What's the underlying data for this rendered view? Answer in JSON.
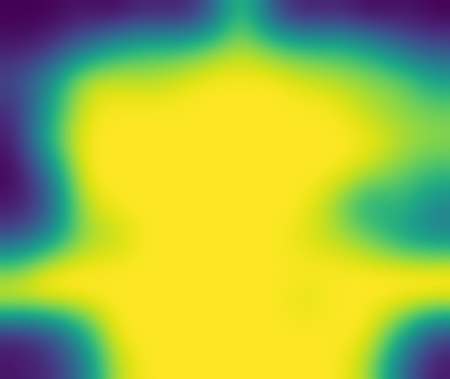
{
  "chart_data": {
    "type": "heatmap",
    "color": "viridis",
    "tick_labels": false,
    "cells": [
      [
        0.1,
        0.1,
        0.15,
        0.1,
        0.2,
        0.15,
        0.3,
        0.8,
        0.3,
        0.15,
        0.2,
        0.1,
        0.15,
        0.1
      ],
      [
        0.15,
        0.2,
        0.4,
        0.6,
        0.7,
        0.7,
        0.8,
        0.9,
        0.8,
        0.7,
        0.7,
        0.6,
        0.4,
        0.3
      ],
      [
        0.3,
        0.5,
        0.9,
        0.95,
        0.9,
        0.95,
        1,
        1,
        1,
        0.95,
        0.9,
        0.85,
        0.8,
        0.6
      ],
      [
        0.2,
        0.6,
        0.95,
        1,
        1,
        1,
        1,
        1,
        1,
        1,
        1,
        0.9,
        0.85,
        0.8
      ],
      [
        0.15,
        0.7,
        1,
        1,
        1,
        1,
        1,
        1,
        1,
        1,
        1,
        1,
        0.9,
        0.85
      ],
      [
        0.1,
        0.4,
        1,
        1,
        1,
        1,
        1,
        1,
        1,
        1,
        1,
        0.9,
        0.8,
        0.7
      ],
      [
        0.15,
        0.3,
        0.9,
        1,
        1,
        1,
        1,
        1,
        1,
        1,
        0.85,
        0.6,
        0.7,
        0.5
      ],
      [
        0.3,
        0.5,
        0.85,
        0.9,
        1,
        1,
        1,
        1,
        1,
        0.95,
        0.9,
        0.8,
        0.6,
        0.5
      ],
      [
        0.8,
        1,
        1,
        1,
        1,
        1,
        1,
        1,
        1,
        1,
        1,
        1,
        1,
        1
      ],
      [
        1,
        1,
        1,
        1,
        1,
        1,
        1,
        1,
        1,
        0.95,
        1,
        1,
        1,
        1
      ],
      [
        0.2,
        0.3,
        0.6,
        1,
        1,
        1,
        1,
        1,
        1,
        1,
        1,
        1,
        0.7,
        0.3
      ],
      [
        0.15,
        0.2,
        0.4,
        0.9,
        1,
        1,
        1,
        1,
        1,
        1,
        1,
        0.9,
        0.4,
        0.15
      ]
    ]
  }
}
